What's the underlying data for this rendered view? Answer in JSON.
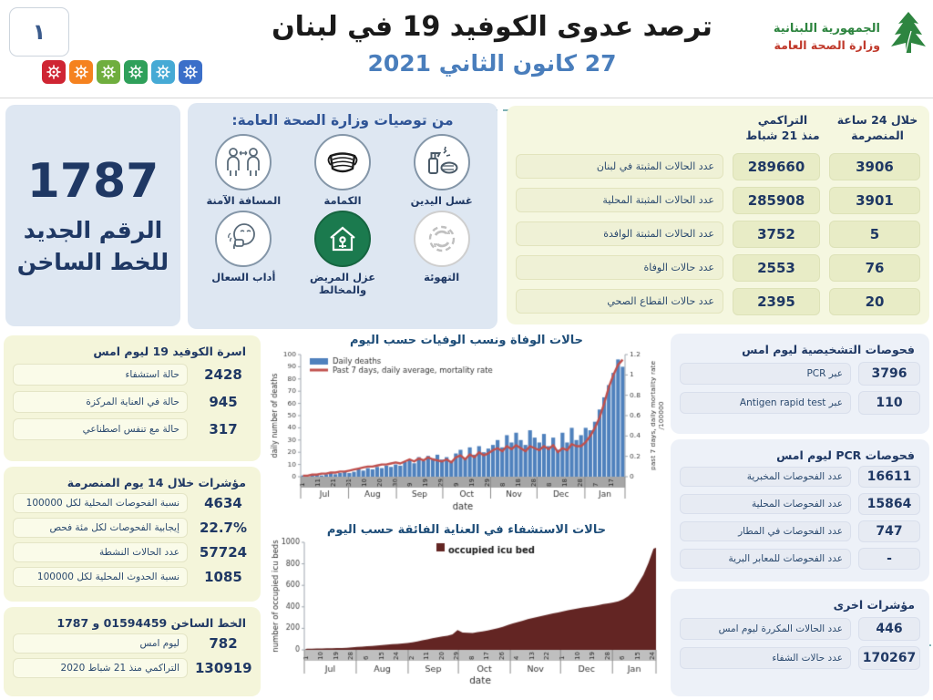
{
  "header": {
    "slide_number": "١",
    "title": "ترصد عدوى الكوفيد 19 في لبنان",
    "date": "27 كانون الثاني 2021",
    "logo_line1": "الجمهورية اللبنانية",
    "logo_line2": "وزارة الصحة العامة",
    "virus_tile_colors": [
      "#cf2533",
      "#f5821f",
      "#6fae3e",
      "#2fa05a",
      "#46aad5",
      "#3b6fc9"
    ]
  },
  "hotline_card": {
    "number": "1787",
    "line1": "الرقم الجديد",
    "line2": "للخط الساخن"
  },
  "recommendations": {
    "title": "من توصيات وزارة الصحة العامة:",
    "items": [
      {
        "label": "غسل اليدين",
        "icon": "handwash-icon"
      },
      {
        "label": "الكمامة",
        "icon": "mask-icon"
      },
      {
        "label": "المسافة الآمنة",
        "icon": "distance-icon"
      },
      {
        "label": "التهوئة",
        "icon": "ventilation-icon"
      },
      {
        "label": "عزل المريض والمخالط",
        "icon": "isolation-icon"
      },
      {
        "label": "أداب السعال",
        "icon": "cough-etiquette-icon"
      }
    ]
  },
  "summary_table": {
    "col_last24": "خلال 24 ساعة\nالمنصرمة",
    "col_cumulative": "التراكمي\nمنذ 21 شباط",
    "rows": [
      {
        "label": "عدد الحالات المثبتة في لبنان",
        "cumulative": "289660",
        "last24": "3906"
      },
      {
        "label": "عدد الحالات المثبتة المحلية",
        "cumulative": "285908",
        "last24": "3901"
      },
      {
        "label": "عدد الحالات المثبتة الوافدة",
        "cumulative": "3752",
        "last24": "5"
      },
      {
        "label": "عدد حالات الوفاة",
        "cumulative": "2553",
        "last24": "76"
      },
      {
        "label": "عدد حالات القطاع الصحي",
        "cumulative": "2395",
        "last24": "20"
      }
    ]
  },
  "left_panels": [
    {
      "title": "اسرة الكوفيد 19 ليوم امس",
      "rows": [
        {
          "value": "2428",
          "label": "حالة استشفاء"
        },
        {
          "value": "945",
          "label": "حالة في العناية المركزة"
        },
        {
          "value": "317",
          "label": "حالة مع تنفس اصطناعي"
        }
      ]
    },
    {
      "title": "مؤشرات خلال 14 يوم المنصرمة",
      "rows": [
        {
          "value": "4634",
          "label": "نسبة الفحوصات المحلية لكل 100000"
        },
        {
          "value": "22.7%",
          "label": "إيجابية الفحوصات لكل مئة فحص"
        },
        {
          "value": "57724",
          "label": "عدد الحالات النشطة"
        },
        {
          "value": "1085",
          "label": "نسبة الحدوث المحلية لكل 100000"
        }
      ]
    },
    {
      "title": "الخط الساخن 01594459 و 1787",
      "rows": [
        {
          "value": "782",
          "label": "ليوم امس"
        },
        {
          "value": "130919",
          "label": "التراكمي منذ 21 شباط 2020"
        }
      ]
    }
  ],
  "right_panels": [
    {
      "title": "فحوصات التشخيصية ليوم امس",
      "rows": [
        {
          "value": "3796",
          "label": "عبر PCR"
        },
        {
          "value": "110",
          "label": "عبر Antigen rapid test"
        }
      ]
    },
    {
      "title": "فحوصات PCR ليوم امس",
      "rows": [
        {
          "value": "16611",
          "label": "عدد الفحوصات المخبرية"
        },
        {
          "value": "15864",
          "label": "عدد الفحوصات المحلية"
        },
        {
          "value": "747",
          "label": "عدد الفحوصات في المطار"
        },
        {
          "value": "-",
          "label": "عدد الفحوصات للمعابر البرية"
        }
      ]
    },
    {
      "title": "مؤشرات اخرى",
      "rows": [
        {
          "value": "446",
          "label": "عدد الحالات المكررة ليوم امس"
        },
        {
          "value": "170267",
          "label": "عدد حالات الشفاء"
        }
      ]
    }
  ],
  "chart_data": [
    {
      "type": "bar",
      "title": "حالات الوفاة ونسب الوفيات حسب اليوم",
      "xlabel": "date",
      "ylabel_left": "daily number of deaths",
      "ylabel_right": "past 7 days, daily mortality rate",
      "ylabel_right2": "/100000",
      "legend": [
        "Daily deaths",
        "Past 7 days, daily average, mortality rate"
      ],
      "legend_position": "top-left",
      "ylim_left": [
        0,
        100
      ],
      "yticks_left": [
        0,
        10,
        20,
        30,
        40,
        50,
        60,
        70,
        80,
        90,
        100
      ],
      "ylim_right": [
        0,
        1.2
      ],
      "yticks_right": [
        0,
        0.2,
        0.4,
        0.6,
        0.8,
        1,
        1.2
      ],
      "months": [
        "Jul",
        "Aug",
        "Sep",
        "Oct",
        "Nov",
        "Dec",
        "Jan"
      ],
      "month_bounds_days": [
        0,
        31,
        62,
        92,
        123,
        153,
        184,
        210
      ],
      "day_tick_labels": [
        "1",
        "11",
        "21",
        "31",
        "10",
        "20",
        "30",
        "9",
        "19",
        "29",
        "9",
        "19",
        "29",
        "8",
        "18",
        "28",
        "8",
        "18",
        "28",
        "7",
        "17"
      ],
      "day_tick_positions": [
        0,
        10,
        20,
        30,
        40,
        50,
        60,
        70,
        80,
        90,
        100,
        110,
        120,
        130,
        140,
        150,
        160,
        170,
        180,
        190,
        200
      ],
      "total_days": 210,
      "sample_step_days": 3,
      "series": [
        {
          "name": "Daily deaths",
          "axis": "left",
          "color": "#4F81BD",
          "values": [
            1,
            0,
            1,
            2,
            1,
            2,
            3,
            2,
            3,
            4,
            3,
            4,
            6,
            5,
            7,
            6,
            8,
            7,
            9,
            8,
            10,
            9,
            12,
            14,
            11,
            16,
            13,
            17,
            15,
            18,
            14,
            16,
            12,
            19,
            22,
            15,
            24,
            18,
            25,
            20,
            23,
            26,
            30,
            24,
            34,
            28,
            36,
            30,
            26,
            38,
            32,
            28,
            35,
            25,
            32,
            22,
            36,
            28,
            40,
            30,
            34,
            40,
            38,
            45,
            55,
            65,
            75,
            85,
            96,
            90
          ]
        },
        {
          "name": "Past 7 days, daily average, mortality rate",
          "axis": "right",
          "color": "#C0504D",
          "values": [
            0.01,
            0.01,
            0.02,
            0.02,
            0.03,
            0.03,
            0.04,
            0.04,
            0.05,
            0.05,
            0.06,
            0.07,
            0.08,
            0.09,
            0.1,
            0.1,
            0.11,
            0.12,
            0.12,
            0.13,
            0.14,
            0.13,
            0.15,
            0.17,
            0.15,
            0.18,
            0.16,
            0.19,
            0.17,
            0.16,
            0.15,
            0.17,
            0.14,
            0.19,
            0.21,
            0.17,
            0.22,
            0.19,
            0.24,
            0.21,
            0.23,
            0.26,
            0.28,
            0.25,
            0.3,
            0.27,
            0.31,
            0.28,
            0.25,
            0.3,
            0.28,
            0.26,
            0.3,
            0.27,
            0.31,
            0.24,
            0.28,
            0.26,
            0.32,
            0.3,
            0.3,
            0.34,
            0.4,
            0.48,
            0.58,
            0.72,
            0.88,
            1.0,
            1.1,
            1.15
          ]
        }
      ]
    },
    {
      "type": "area",
      "title": "حالات الاستشفاء في العناية الفائقة حسب اليوم",
      "xlabel": "date",
      "ylabel": "number of occupied icu beds",
      "legend": [
        "occupied icu bed"
      ],
      "legend_position": "top-center",
      "ylim": [
        0,
        1000
      ],
      "yticks": [
        0,
        200,
        400,
        600,
        800,
        1000
      ],
      "months": [
        "Jul",
        "Aug",
        "Sep",
        "Oct",
        "Nov",
        "Dec",
        "Jan"
      ],
      "month_bounds_days": [
        0,
        31,
        62,
        92,
        123,
        153,
        184,
        210
      ],
      "day_tick_labels": [
        "1",
        "10",
        "19",
        "28",
        "6",
        "15",
        "24",
        "2",
        "11",
        "20",
        "29",
        "8",
        "17",
        "26",
        "4",
        "13",
        "22",
        "1",
        "10",
        "19",
        "28",
        "6",
        "15",
        "24"
      ],
      "day_tick_positions": [
        0,
        9,
        18,
        27,
        36,
        45,
        54,
        63,
        72,
        81,
        90,
        99,
        108,
        117,
        126,
        135,
        144,
        153,
        162,
        171,
        180,
        189,
        198,
        207
      ],
      "total_days": 210,
      "sample_step_days": 3,
      "series": [
        {
          "name": "occupied icu bed",
          "color": "#632523",
          "values": [
            10,
            11,
            12,
            13,
            14,
            15,
            16,
            18,
            20,
            24,
            28,
            30,
            33,
            36,
            40,
            44,
            48,
            52,
            56,
            60,
            64,
            70,
            78,
            88,
            98,
            108,
            116,
            124,
            132,
            145,
            185,
            160,
            158,
            156,
            165,
            172,
            180,
            190,
            202,
            215,
            230,
            245,
            258,
            272,
            285,
            296,
            308,
            318,
            328,
            338,
            348,
            358,
            368,
            378,
            386,
            394,
            400,
            406,
            415,
            425,
            432,
            440,
            452,
            470,
            500,
            545,
            620,
            700,
            810,
            940
          ]
        }
      ]
    }
  ]
}
